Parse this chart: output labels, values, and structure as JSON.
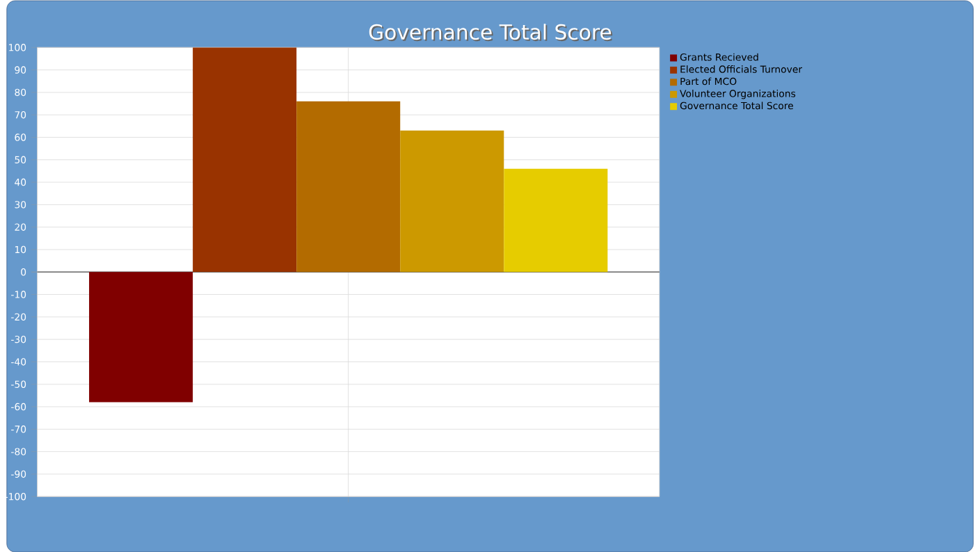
{
  "chart_data": {
    "type": "bar",
    "title": "Governance Total Score",
    "categories": [
      null
    ],
    "series": [
      {
        "name": "Grants Recieved",
        "color": "#800000",
        "values": [
          -58
        ]
      },
      {
        "name": "Elected Officials Turnover",
        "color": "#993300",
        "values": [
          100
        ]
      },
      {
        "name": "Part of MCO",
        "color": "#b36b00",
        "values": [
          76
        ]
      },
      {
        "name": "Volunteer Organizations",
        "color": "#cc9900",
        "values": [
          63
        ]
      },
      {
        "name": "Governance Total Score",
        "color": "#e6cc00",
        "values": [
          46
        ]
      }
    ],
    "ylim": [
      -100,
      100
    ],
    "yticks": [
      -100,
      -90,
      -80,
      -70,
      -60,
      -50,
      -40,
      -30,
      -20,
      -10,
      0,
      10,
      20,
      30,
      40,
      50,
      60,
      70,
      80,
      90,
      100
    ],
    "grid": true,
    "legend": "top right"
  }
}
